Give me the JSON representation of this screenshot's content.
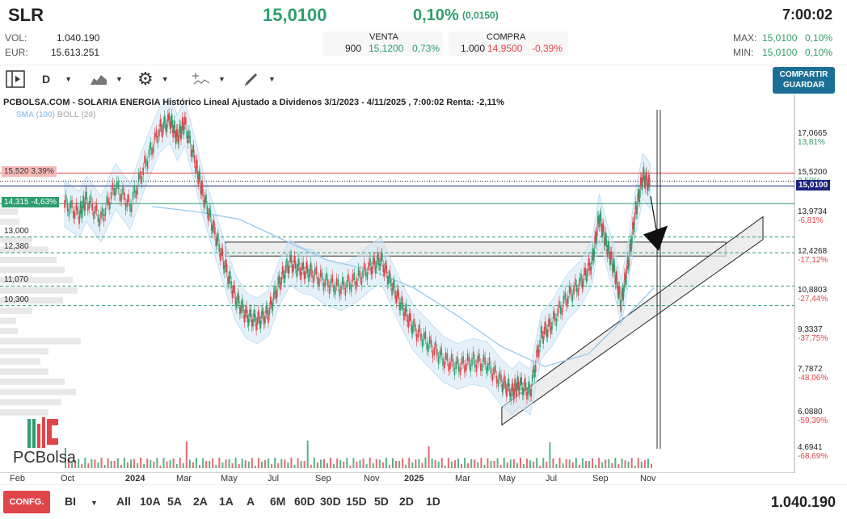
{
  "header": {
    "ticker": "SLR",
    "last": "15,0100",
    "change_pct": "0,10%",
    "change_abs": "(0,0150)",
    "time": "7:00:02"
  },
  "stats": {
    "vol_label": "VOL:",
    "vol_value": "1.040.190",
    "eur_label": "EUR:",
    "eur_value": "15.613.251",
    "max_label": "MAX:",
    "max_value": "15,0100",
    "max_pct": "0,10%",
    "min_label": "MIN:",
    "min_value": "15,0100",
    "min_pct": "0,10%"
  },
  "book": {
    "venta_label": "VENTA",
    "venta_qty": "900",
    "venta_price": "15,1200",
    "venta_pct": "0,73%",
    "compra_label": "COMPRA",
    "compra_qty": "1.000",
    "compra_price": "14,9500",
    "compra_pct": "-0,39%"
  },
  "toolbar": {
    "period": "D",
    "share_label_1": "COMPARTIR",
    "share_label_2": "GUARDAR"
  },
  "chart_title": "PCBOLSA.COM - SOLARIA ENERGIA Histórico Lineal Ajustado a Dividenos 3/1/2023 - 4/11/2025 , 7:00:02 Renta: -2,11%",
  "indicators": {
    "sma": "SMA (100)",
    "boll": "BOLL (20)"
  },
  "logo": "PCBolsa",
  "bottom": {
    "config": "CONFG.",
    "bi": "BI",
    "ranges": [
      "All",
      "10A",
      "5A",
      "2A",
      "1A",
      "A",
      "6M",
      "60D",
      "30D",
      "15D",
      "5D",
      "2D",
      "1D"
    ],
    "volume": "1.040.190"
  },
  "chart_data": {
    "type": "line",
    "title": "PCBOLSA.COM - SOLARIA ENERGIA Histórico Lineal Ajustado a Dividenos 3/1/2023 - 4/11/2025 , 7:00:02 Renta: -2,11%",
    "ylim": [
      3.9,
      18.2
    ],
    "y_ticks": [
      {
        "value": "17,0665",
        "pct": "13,81%",
        "v": 17.0665
      },
      {
        "value": "15,5200",
        "pct": "3,50%",
        "v": 15.52
      },
      {
        "value": "13,9734",
        "pct": "-6,81%",
        "v": 13.9734
      },
      {
        "value": "12,4268",
        "pct": "-17,12%",
        "v": 12.4268
      },
      {
        "value": "10,8803",
        "pct": "-27,44%",
        "v": 10.8803
      },
      {
        "value": "9,3337",
        "pct": "-37,75%",
        "v": 9.3337
      },
      {
        "value": "7,7872",
        "pct": "-48,06%",
        "v": 7.7872
      },
      {
        "value": "6,0880",
        "pct": "-59,39%",
        "v": 6.088
      },
      {
        "value": "4,6941",
        "pct": "-68,69%",
        "v": 4.6941
      }
    ],
    "x_labels": [
      "Feb",
      "Oct",
      "2024",
      "Mar",
      "May",
      "Jul",
      "Sep",
      "Nov",
      "2025",
      "Mar",
      "May",
      "Jul",
      "Sep",
      "Nov"
    ],
    "levels": [
      {
        "label": "15,520  3,39%",
        "v": 15.52,
        "color": "#e0454a"
      },
      {
        "label": "14,315  -4,63%",
        "v": 14.315,
        "color": "#2e9e6e"
      },
      {
        "label": "15,0100",
        "v": 15.01,
        "color": "#1a237e"
      },
      {
        "label": "13,000",
        "v": 13.0
      },
      {
        "label": "12,380",
        "v": 12.38
      },
      {
        "label": "11,070",
        "v": 11.07
      },
      {
        "label": "10,300",
        "v": 10.3
      }
    ],
    "price": [
      [
        0,
        14.3
      ],
      [
        0.02,
        13.9
      ],
      [
        0.03,
        14.5
      ],
      [
        0.05,
        13.7
      ],
      [
        0.07,
        15.0
      ],
      [
        0.09,
        14.2
      ],
      [
        0.11,
        15.8
      ],
      [
        0.13,
        17.2
      ],
      [
        0.145,
        17.6
      ],
      [
        0.155,
        16.9
      ],
      [
        0.165,
        17.5
      ],
      [
        0.18,
        15.9
      ],
      [
        0.19,
        14.7
      ],
      [
        0.205,
        13.3
      ],
      [
        0.22,
        11.9
      ],
      [
        0.235,
        10.6
      ],
      [
        0.25,
        9.9
      ],
      [
        0.265,
        9.7
      ],
      [
        0.28,
        10.0
      ],
      [
        0.295,
        11.2
      ],
      [
        0.31,
        12.0
      ],
      [
        0.325,
        11.7
      ],
      [
        0.34,
        11.6
      ],
      [
        0.36,
        11.2
      ],
      [
        0.38,
        11.0
      ],
      [
        0.4,
        11.3
      ],
      [
        0.42,
        11.8
      ],
      [
        0.435,
        12.1
      ],
      [
        0.45,
        11.1
      ],
      [
        0.465,
        10.2
      ],
      [
        0.48,
        9.4
      ],
      [
        0.5,
        8.8
      ],
      [
        0.52,
        8.2
      ],
      [
        0.54,
        7.9
      ],
      [
        0.56,
        8.1
      ],
      [
        0.58,
        8.0
      ],
      [
        0.6,
        7.3
      ],
      [
        0.615,
        6.9
      ],
      [
        0.625,
        7.2
      ],
      [
        0.64,
        6.9
      ],
      [
        0.655,
        9.1
      ],
      [
        0.67,
        9.6
      ],
      [
        0.69,
        10.6
      ],
      [
        0.71,
        11.2
      ],
      [
        0.725,
        12.0
      ],
      [
        0.735,
        13.8
      ],
      [
        0.745,
        12.7
      ],
      [
        0.755,
        11.8
      ],
      [
        0.765,
        10.4
      ],
      [
        0.775,
        12.0
      ],
      [
        0.785,
        14.0
      ],
      [
        0.795,
        15.4
      ],
      [
        0.805,
        15.0
      ]
    ],
    "sma": [
      [
        0.12,
        14.2
      ],
      [
        0.18,
        14.0
      ],
      [
        0.24,
        13.7
      ],
      [
        0.3,
        12.9
      ],
      [
        0.36,
        12.1
      ],
      [
        0.42,
        11.7
      ],
      [
        0.48,
        11.0
      ],
      [
        0.54,
        9.9
      ],
      [
        0.6,
        8.7
      ],
      [
        0.66,
        7.9
      ],
      [
        0.72,
        8.4
      ],
      [
        0.78,
        10.1
      ],
      [
        0.81,
        11.0
      ]
    ],
    "volume_y": [
      4.4,
      3.9
    ]
  }
}
